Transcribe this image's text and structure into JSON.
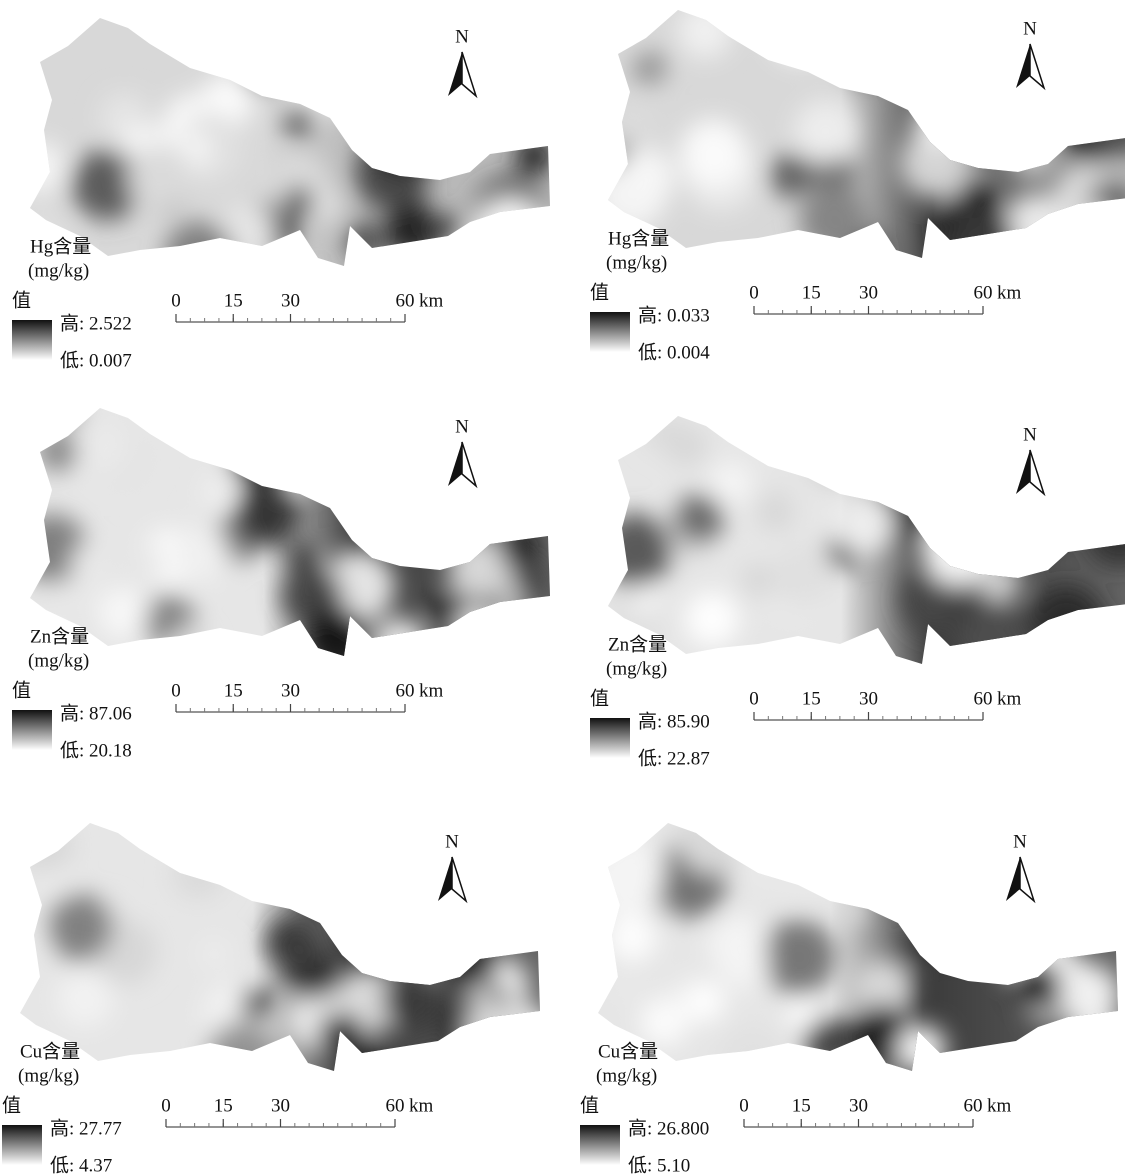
{
  "panels": [
    {
      "title": "Hg含量",
      "unit": "(mg/kg)",
      "legend_title": "值",
      "high": "高: 2.522",
      "low": "低: 0.007",
      "scale_ticks": [
        0,
        15,
        30,
        60
      ],
      "scale_unit": "km",
      "north": "N"
    },
    {
      "title": "Hg含量",
      "unit": "(mg/kg)",
      "legend_title": "值",
      "high": "高: 0.033",
      "low": "低: 0.004",
      "scale_ticks": [
        0,
        15,
        30,
        60
      ],
      "scale_unit": "km",
      "north": "N"
    },
    {
      "title": "Zn含量",
      "unit": "(mg/kg)",
      "legend_title": "值",
      "high": "高: 87.06",
      "low": "低: 20.18",
      "scale_ticks": [
        0,
        15,
        30,
        60
      ],
      "scale_unit": "km",
      "north": "N"
    },
    {
      "title": "Zn含量",
      "unit": "(mg/kg)",
      "legend_title": "值",
      "high": "高: 85.90",
      "low": "低: 22.87",
      "scale_ticks": [
        0,
        15,
        30,
        60
      ],
      "scale_unit": "km",
      "north": "N"
    },
    {
      "title": "Cu含量",
      "unit": "(mg/kg)",
      "legend_title": "值",
      "high": "高: 27.77",
      "low": "低: 4.37",
      "scale_ticks": [
        0,
        15,
        30,
        60
      ],
      "scale_unit": "km",
      "north": "N"
    },
    {
      "title": "Cu含量",
      "unit": "(mg/kg)",
      "legend_title": "值",
      "high": "高: 26.800",
      "low": "低: 5.10",
      "scale_ticks": [
        0,
        15,
        30,
        60
      ],
      "scale_unit": "km",
      "north": "N"
    }
  ]
}
